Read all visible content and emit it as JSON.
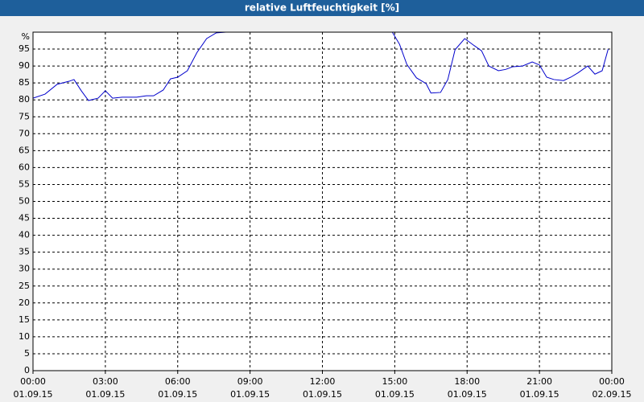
{
  "chart_data": {
    "type": "line",
    "title": "relative Luftfeuchtigkeit [%]",
    "y_label": "%",
    "x": [
      0,
      0.5,
      1,
      1.5,
      1.7,
      2,
      2.3,
      2.7,
      3,
      3.3,
      3.7,
      4.3,
      4.7,
      5,
      5.4,
      5.7,
      6,
      6.4,
      6.8,
      7.2,
      7.6,
      8,
      9,
      12,
      14.9,
      15.2,
      15.5,
      15.9,
      16.3,
      16.5,
      16.9,
      17.2,
      17.5,
      17.9,
      18.3,
      18.6,
      18.9,
      19.3,
      19.6,
      19.9,
      20.3,
      20.7,
      21,
      21.3,
      21.6,
      22,
      22.3,
      22.6,
      23,
      23.3,
      23.6,
      23.85
    ],
    "series": [
      {
        "name": "relative Luftfeuchtigkeit",
        "color": "#0000cc",
        "values": [
          80.5,
          81.7,
          84.6,
          85.5,
          86,
          82.7,
          79.8,
          80.5,
          82.7,
          80.5,
          80.8,
          80.8,
          81.2,
          81.2,
          82.9,
          86.2,
          86.7,
          88.6,
          94,
          98.1,
          99.8,
          100,
          100,
          100,
          100,
          96.4,
          90.5,
          86.5,
          84.8,
          82,
          82.2,
          86,
          94.8,
          98.1,
          96,
          94.5,
          90,
          88.6,
          89,
          89.8,
          90,
          91.2,
          90.3,
          86.7,
          86,
          85.7,
          86.7,
          88,
          90,
          87.6,
          88.6,
          95
        ]
      }
    ],
    "xlim": [
      0,
      24
    ],
    "xticks": [
      {
        "value": 0,
        "label": "00:00",
        "date": "01.09.15"
      },
      {
        "value": 3,
        "label": "03:00",
        "date": "01.09.15"
      },
      {
        "value": 6,
        "label": "06:00",
        "date": "01.09.15"
      },
      {
        "value": 9,
        "label": "09:00",
        "date": "01.09.15"
      },
      {
        "value": 12,
        "label": "12:00",
        "date": "01.09.15"
      },
      {
        "value": 15,
        "label": "15:00",
        "date": "01.09.15"
      },
      {
        "value": 18,
        "label": "18:00",
        "date": "01.09.15"
      },
      {
        "value": 21,
        "label": "21:00",
        "date": "01.09.15"
      },
      {
        "value": 24,
        "label": "00:00",
        "date": "02.09.15"
      }
    ],
    "ylim": [
      0,
      100
    ],
    "yticks": [
      0,
      5,
      10,
      15,
      20,
      25,
      30,
      35,
      40,
      45,
      50,
      55,
      60,
      65,
      70,
      75,
      80,
      85,
      90,
      95
    ],
    "grid": true
  }
}
